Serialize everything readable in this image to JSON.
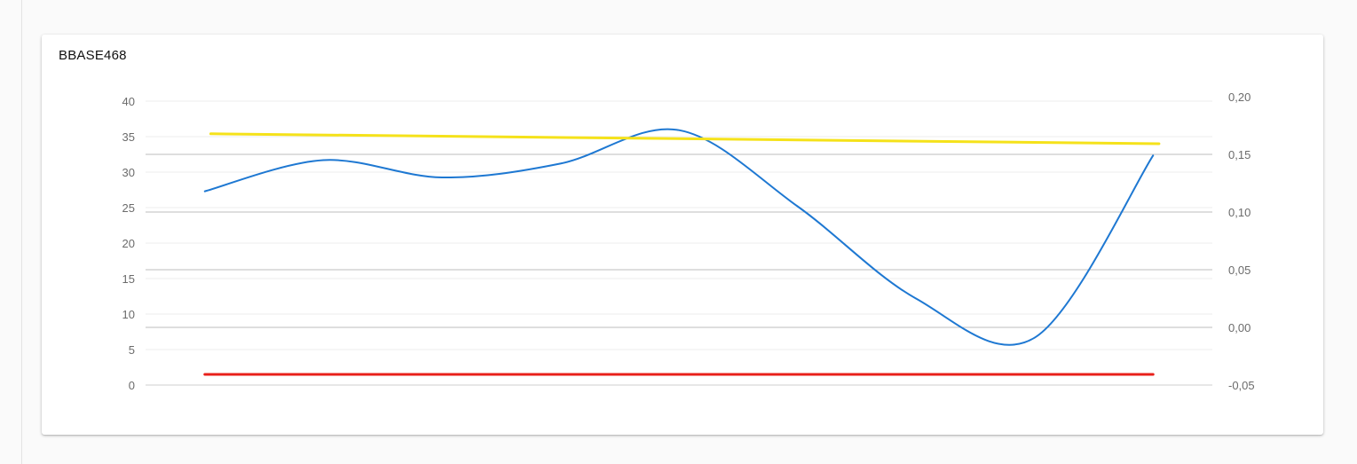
{
  "card": {
    "title": "BBASE468"
  },
  "colors": {
    "primary_series": "#1e78d2",
    "upper_limit": "#f5e21a",
    "lower_limit": "#e8201b",
    "grid_left": "#ececec",
    "grid_right": "#bdbdbd",
    "baseline": "#cfcfcf"
  },
  "chart_data": {
    "type": "line",
    "title": "BBASE468",
    "xlabel": "",
    "ylabel": "",
    "x": [
      1,
      2,
      3,
      4,
      5,
      6,
      7,
      8,
      9
    ],
    "xlim": [
      0.5,
      9.5
    ],
    "grid": true,
    "legend": "none",
    "y_left": {
      "ticks": [
        "40",
        "35",
        "30",
        "25",
        "20",
        "15",
        "10",
        "5",
        "0"
      ],
      "tick_values": [
        40,
        35,
        30,
        25,
        20,
        15,
        10,
        5,
        0
      ],
      "range": [
        0,
        40
      ]
    },
    "y_right": {
      "ticks": [
        "0,20",
        "0,15",
        "0,10",
        "0,05",
        "0,00",
        "-0,05"
      ],
      "tick_values": [
        0.2,
        0.15,
        0.1,
        0.05,
        0.0,
        -0.05
      ],
      "range": [
        -0.05,
        0.2
      ]
    },
    "series": [
      {
        "axis": "right",
        "color": "#1e78d2",
        "smooth": true,
        "x": [
          1,
          2,
          3,
          4,
          5,
          6,
          7,
          8,
          9
        ],
        "values": [
          0.118,
          0.145,
          0.13,
          0.142,
          0.171,
          0.105,
          0.025,
          -0.009,
          0.149
        ]
      },
      {
        "axis": "left",
        "color": "#f5e21a",
        "smooth": false,
        "x": [
          1.05,
          9.05
        ],
        "values": [
          35.4,
          34.0
        ]
      },
      {
        "axis": "left",
        "color": "#e8201b",
        "smooth": false,
        "x": [
          1.0,
          9.0
        ],
        "values": [
          1.5,
          1.5
        ]
      }
    ]
  }
}
